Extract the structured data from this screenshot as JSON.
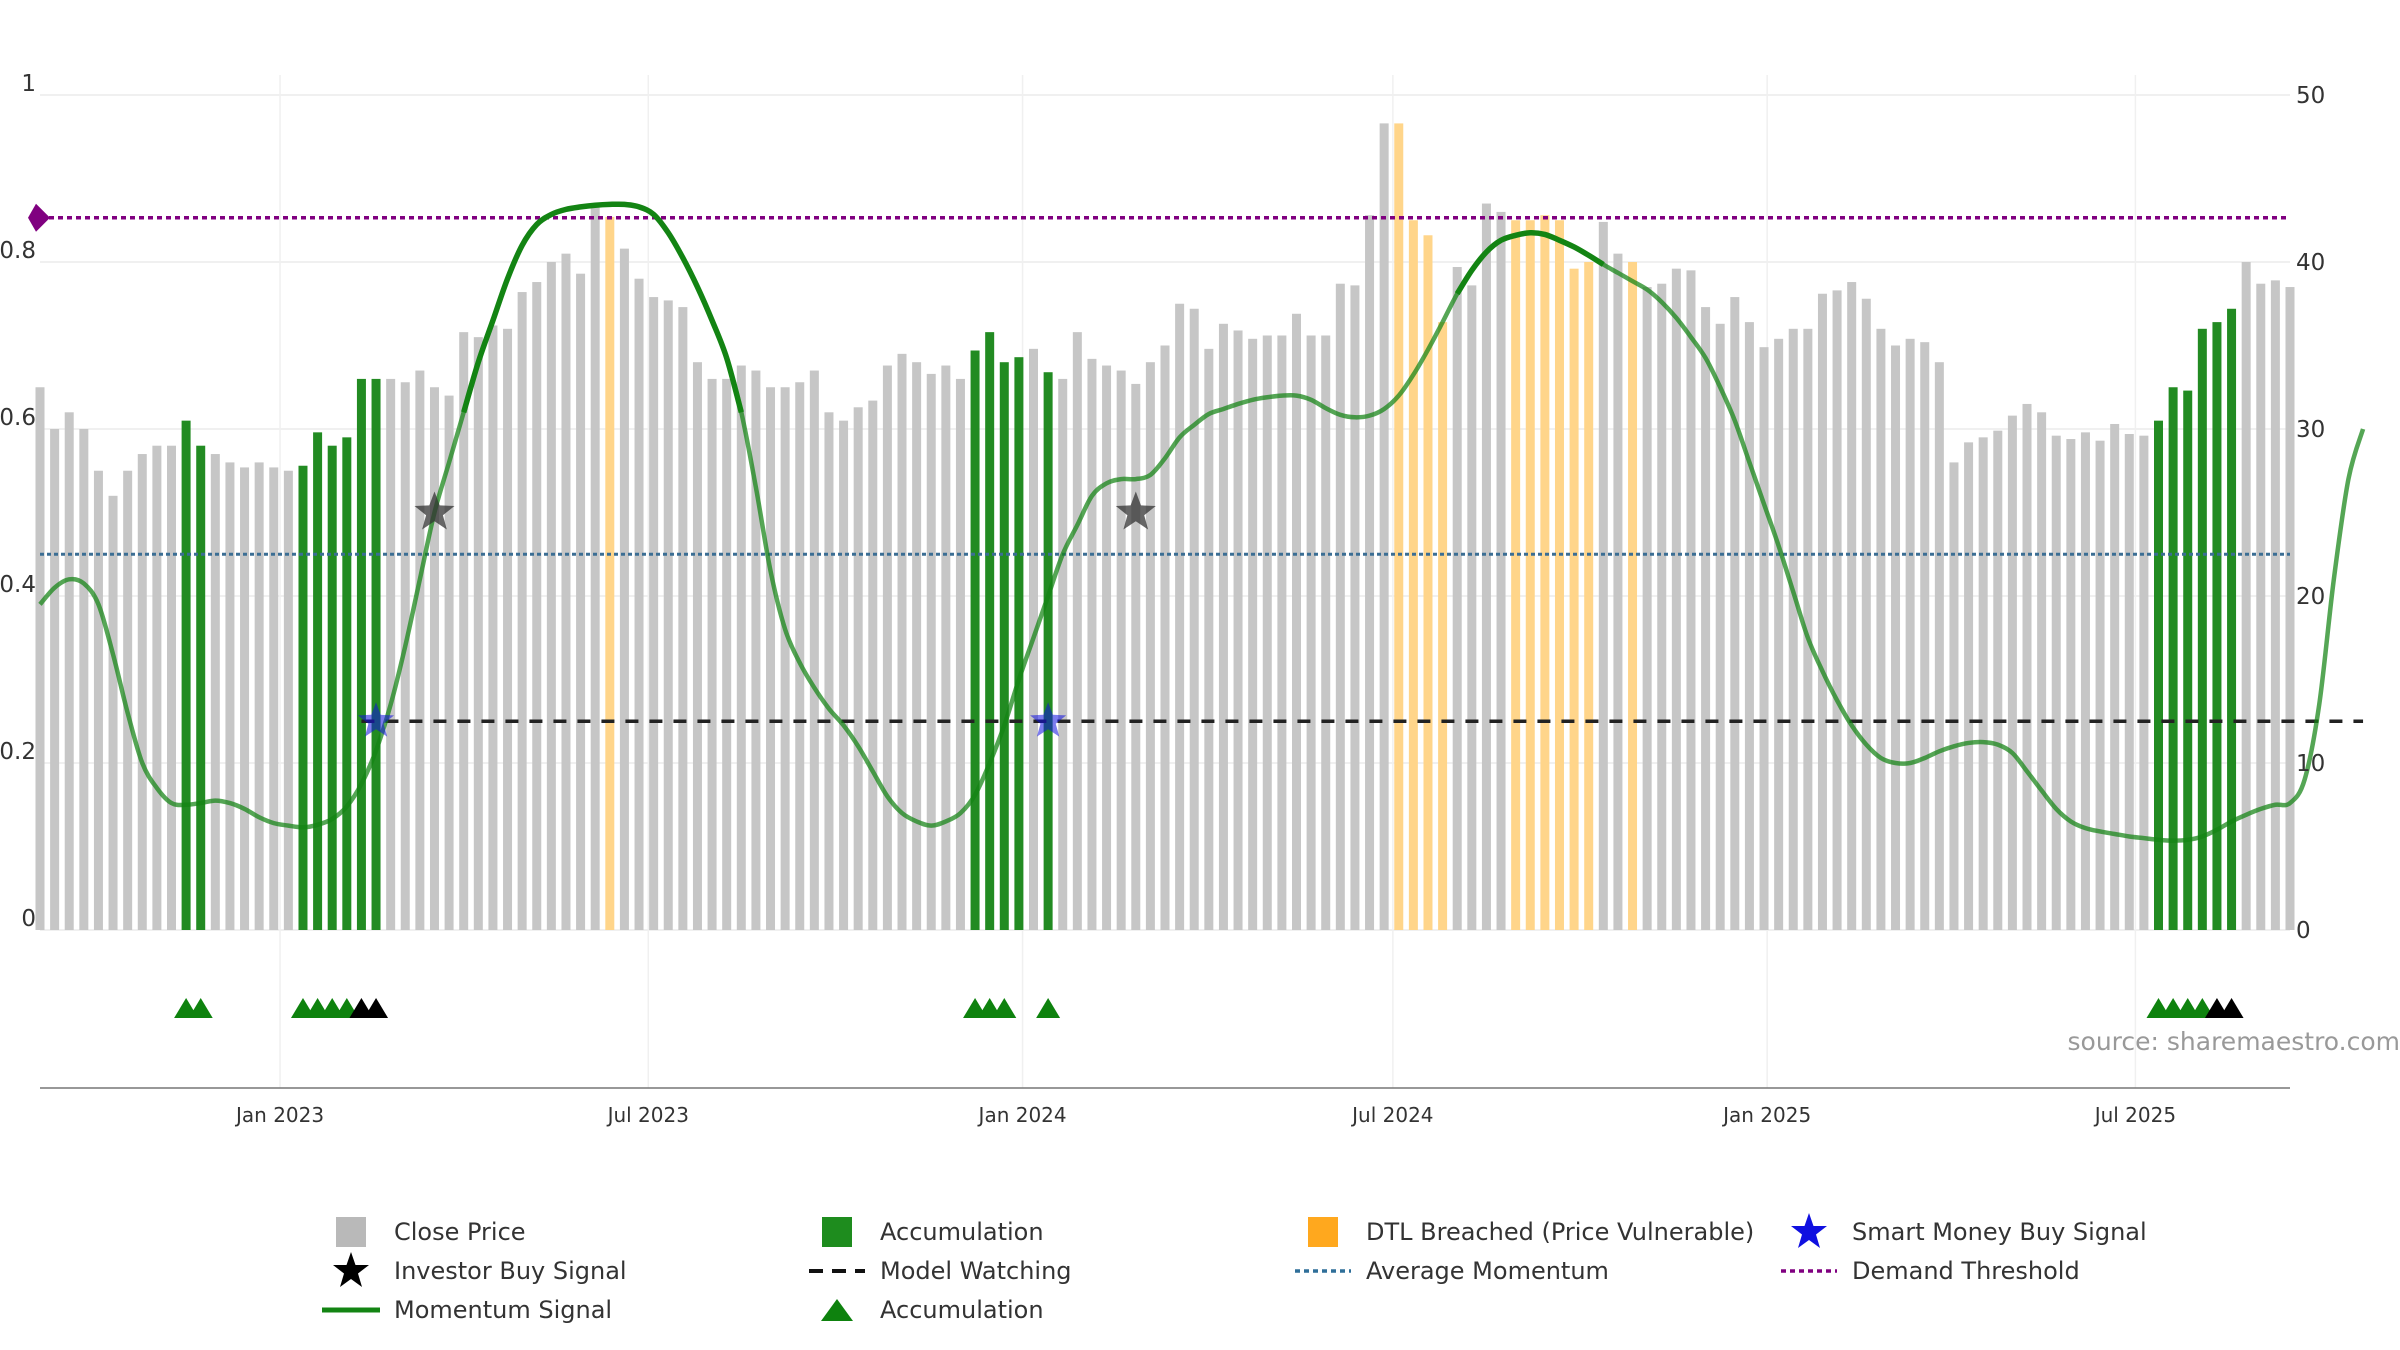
{
  "chart_data": {
    "type": "bar",
    "left_axis": {
      "ylim": [
        0,
        1
      ],
      "ticks": [
        0,
        0.2,
        0.4,
        0.6,
        0.8,
        1
      ],
      "tick_labels": [
        "0",
        "0.2",
        "0.4",
        "0.6",
        "0.8",
        "1"
      ]
    },
    "right_axis": {
      "ylim": [
        0,
        50
      ],
      "ticks": [
        0,
        10,
        20,
        30,
        40,
        50
      ],
      "tick_labels": [
        "0",
        "10",
        "20",
        "30",
        "40",
        "50"
      ]
    },
    "x_axis": {
      "start": "2022-09-05",
      "end": "2025-09-15",
      "ticks": [
        {
          "date": "2023-01-01",
          "label": "Jan 2023"
        },
        {
          "date": "2023-07-01",
          "label": "Jul 2023"
        },
        {
          "date": "2024-01-01",
          "label": "Jan 2024"
        },
        {
          "date": "2024-07-01",
          "label": "Jul 2024"
        },
        {
          "date": "2025-01-01",
          "label": "Jan 2025"
        },
        {
          "date": "2025-07-01",
          "label": "Jul 2025"
        }
      ]
    },
    "close_price_weekly": [
      32.5,
      30,
      31,
      30,
      27.5,
      26,
      27.5,
      28.5,
      29,
      29,
      30.5,
      29,
      28.5,
      28,
      27.7,
      28,
      27.7,
      27.5,
      27.8,
      29.8,
      29,
      29.5,
      33,
      33,
      33,
      32.8,
      33.5,
      32.5,
      32,
      35.8,
      35.5,
      36.2,
      36,
      38.2,
      38.8,
      40,
      40.5,
      39.3,
      43.3,
      42.7,
      40.8,
      39,
      37.9,
      37.7,
      37.3,
      34,
      33,
      33,
      33.8,
      33.5,
      32.5,
      32.5,
      32.8,
      33.5,
      31,
      30.5,
      31.3,
      31.7,
      33.8,
      34.5,
      34,
      33.3,
      33.8,
      33,
      34.7,
      35.8,
      34,
      34.3,
      34.8,
      33.4,
      33,
      35.8,
      34.2,
      33.8,
      33.5,
      32.7,
      34,
      35,
      37.5,
      37.2,
      34.8,
      36.3,
      35.9,
      35.4,
      35.6,
      35.6,
      36.9,
      35.6,
      35.6,
      38.7,
      38.6,
      42.8,
      48.3,
      48.3,
      42.5,
      41.6,
      36.4,
      39.7,
      38.6,
      43.5,
      43,
      42.5,
      42.5,
      42.8,
      42.5,
      39.6,
      40,
      42.4,
      40.5,
      40,
      38.5,
      38.7,
      39.6,
      39.5,
      37.3,
      36.3,
      37.9,
      36.4,
      34.9,
      35.4,
      36,
      36,
      38.1,
      38.3,
      38.8,
      37.8,
      36,
      35,
      35.4,
      35.2,
      34,
      28,
      29.2,
      29.5,
      29.9,
      30.8,
      31.5,
      31,
      29.6,
      29.4,
      29.8,
      29.3,
      30.3,
      29.7,
      29.6,
      30.5,
      32.5,
      32.3,
      36,
      36.4,
      37.2,
      40,
      38.7,
      38.9,
      38.5
    ],
    "bar_state_runs": [
      {
        "from": 10,
        "to": 11,
        "state": "accumulation"
      },
      {
        "from": 18,
        "to": 23,
        "state": "accumulation"
      },
      {
        "from": 39,
        "to": 39,
        "state": "dtl_breached"
      },
      {
        "from": 64,
        "to": 67,
        "state": "accumulation"
      },
      {
        "from": 69,
        "to": 69,
        "state": "accumulation"
      },
      {
        "from": 93,
        "to": 96,
        "state": "dtl_breached"
      },
      {
        "from": 101,
        "to": 106,
        "state": "dtl_breached"
      },
      {
        "from": 109,
        "to": 109,
        "state": "dtl_breached"
      },
      {
        "from": 145,
        "to": 150,
        "state": "accumulation"
      }
    ],
    "momentum_signal": [
      [
        0,
        0.39
      ],
      [
        1,
        0.41
      ],
      [
        2,
        0.42
      ],
      [
        3,
        0.415
      ],
      [
        4,
        0.39
      ],
      [
        5,
        0.33
      ],
      [
        6,
        0.26
      ],
      [
        7,
        0.2
      ],
      [
        8,
        0.17
      ],
      [
        9,
        0.152
      ],
      [
        10,
        0.15
      ],
      [
        11,
        0.152
      ],
      [
        12,
        0.155
      ],
      [
        13,
        0.152
      ],
      [
        14,
        0.145
      ],
      [
        15,
        0.135
      ],
      [
        16,
        0.128
      ],
      [
        17,
        0.125
      ],
      [
        18,
        0.123
      ],
      [
        19,
        0.126
      ],
      [
        20,
        0.133
      ],
      [
        21,
        0.148
      ],
      [
        22,
        0.175
      ],
      [
        23,
        0.215
      ],
      [
        24,
        0.27
      ],
      [
        25,
        0.34
      ],
      [
        26,
        0.42
      ],
      [
        27,
        0.5
      ],
      [
        28,
        0.56
      ],
      [
        29,
        0.62
      ],
      [
        30,
        0.68
      ],
      [
        31,
        0.73
      ],
      [
        32,
        0.78
      ],
      [
        33,
        0.82
      ],
      [
        34,
        0.845
      ],
      [
        35,
        0.857
      ],
      [
        36,
        0.863
      ],
      [
        37,
        0.866
      ],
      [
        38,
        0.868
      ],
      [
        39,
        0.869
      ],
      [
        40,
        0.869
      ],
      [
        41,
        0.866
      ],
      [
        42,
        0.857
      ],
      [
        43,
        0.835
      ],
      [
        44,
        0.805
      ],
      [
        45,
        0.77
      ],
      [
        46,
        0.73
      ],
      [
        47,
        0.685
      ],
      [
        48,
        0.62
      ],
      [
        49,
        0.53
      ],
      [
        50,
        0.43
      ],
      [
        51,
        0.36
      ],
      [
        52,
        0.32
      ],
      [
        53,
        0.29
      ],
      [
        54,
        0.265
      ],
      [
        55,
        0.245
      ],
      [
        56,
        0.22
      ],
      [
        57,
        0.19
      ],
      [
        58,
        0.16
      ],
      [
        59,
        0.14
      ],
      [
        60,
        0.13
      ],
      [
        61,
        0.125
      ],
      [
        62,
        0.13
      ],
      [
        63,
        0.14
      ],
      [
        64,
        0.162
      ],
      [
        65,
        0.2
      ],
      [
        66,
        0.245
      ],
      [
        67,
        0.3
      ],
      [
        68,
        0.35
      ],
      [
        69,
        0.4
      ],
      [
        70,
        0.45
      ],
      [
        71,
        0.485
      ],
      [
        72,
        0.52
      ],
      [
        73,
        0.535
      ],
      [
        74,
        0.54
      ],
      [
        75,
        0.54
      ],
      [
        76,
        0.545
      ],
      [
        77,
        0.565
      ],
      [
        78,
        0.59
      ],
      [
        79,
        0.605
      ],
      [
        80,
        0.618
      ],
      [
        81,
        0.624
      ],
      [
        82,
        0.63
      ],
      [
        83,
        0.635
      ],
      [
        84,
        0.638
      ],
      [
        85,
        0.64
      ],
      [
        86,
        0.64
      ],
      [
        87,
        0.635
      ],
      [
        88,
        0.625
      ],
      [
        89,
        0.617
      ],
      [
        90,
        0.614
      ],
      [
        91,
        0.616
      ],
      [
        92,
        0.624
      ],
      [
        93,
        0.64
      ],
      [
        94,
        0.665
      ],
      [
        95,
        0.695
      ],
      [
        96,
        0.728
      ],
      [
        97,
        0.762
      ],
      [
        98,
        0.79
      ],
      [
        99,
        0.812
      ],
      [
        100,
        0.826
      ],
      [
        101,
        0.832
      ],
      [
        102,
        0.835
      ],
      [
        103,
        0.833
      ],
      [
        104,
        0.826
      ],
      [
        105,
        0.818
      ],
      [
        106,
        0.808
      ],
      [
        107,
        0.797
      ],
      [
        108,
        0.787
      ],
      [
        109,
        0.777
      ],
      [
        110,
        0.767
      ],
      [
        111,
        0.752
      ],
      [
        112,
        0.733
      ],
      [
        113,
        0.71
      ],
      [
        114,
        0.685
      ],
      [
        115,
        0.65
      ],
      [
        116,
        0.61
      ],
      [
        117,
        0.56
      ],
      [
        118,
        0.51
      ],
      [
        119,
        0.46
      ],
      [
        120,
        0.405
      ],
      [
        121,
        0.35
      ],
      [
        122,
        0.31
      ],
      [
        123,
        0.275
      ],
      [
        124,
        0.245
      ],
      [
        125,
        0.222
      ],
      [
        126,
        0.206
      ],
      [
        127,
        0.2
      ],
      [
        128,
        0.2
      ],
      [
        129,
        0.206
      ],
      [
        130,
        0.214
      ],
      [
        131,
        0.22
      ],
      [
        132,
        0.224
      ],
      [
        133,
        0.225
      ],
      [
        134,
        0.222
      ],
      [
        135,
        0.212
      ],
      [
        136,
        0.19
      ],
      [
        137,
        0.167
      ],
      [
        138,
        0.145
      ],
      [
        139,
        0.13
      ],
      [
        140,
        0.122
      ],
      [
        141,
        0.118
      ],
      [
        142,
        0.115
      ],
      [
        143,
        0.112
      ],
      [
        144,
        0.11
      ],
      [
        145,
        0.108
      ],
      [
        146,
        0.107
      ],
      [
        147,
        0.108
      ],
      [
        148,
        0.112
      ],
      [
        149,
        0.12
      ],
      [
        150,
        0.13
      ],
      [
        151,
        0.138
      ],
      [
        152,
        0.145
      ],
      [
        153,
        0.15
      ],
      [
        154,
        0.152
      ],
      [
        155,
        0.18
      ],
      [
        156,
        0.27
      ],
      [
        157,
        0.42
      ],
      [
        158,
        0.54
      ],
      [
        159,
        0.6
      ]
    ],
    "momentum_strong_segments": [
      [
        29,
        48
      ],
      [
        97,
        107
      ]
    ],
    "average_momentum": 0.45,
    "demand_threshold": 0.853,
    "model_watching": {
      "value": 0.25,
      "from_week": 22,
      "to_week": 159
    },
    "investor_buy_signals": [
      {
        "week": 27,
        "value": 0.5
      },
      {
        "week": 75,
        "value": 0.5
      }
    ],
    "smart_money_buy_signals": [
      {
        "week": 23,
        "value": 0.25
      },
      {
        "week": 69,
        "value": 0.25
      }
    ],
    "accumulation_markers": [
      10,
      11,
      18,
      19,
      20,
      21,
      64,
      65,
      66,
      69,
      145,
      146,
      147,
      148
    ],
    "investor_markers": [
      22,
      23,
      149,
      150
    ],
    "source": "source: sharemaestro.com"
  },
  "colors": {
    "close_price": "#c6c6c6",
    "accumulation": "#228b22",
    "dtl_breached": "#ffd58a",
    "momentum": "#138413",
    "average_momentum": "#3b6e94",
    "model_watching": "#222222",
    "demand_threshold": "#800080",
    "smart_money": "#1010e0",
    "investor": "#000000",
    "marker_green": "#0e820e",
    "legend_dtl": "#ffa81e"
  },
  "legend": {
    "close_price": "Close Price",
    "accumulation": "Accumulation",
    "dtl_breached": "DTL Breached (Price Vulnerable)",
    "smart_money": "Smart Money Buy Signal",
    "investor_buy": "Investor Buy Signal",
    "model_watching": "Model Watching",
    "average_momentum": "Average Momentum",
    "demand_threshold": "Demand Threshold",
    "momentum_signal": "Momentum Signal",
    "accumulation_marker": "Accumulation"
  }
}
